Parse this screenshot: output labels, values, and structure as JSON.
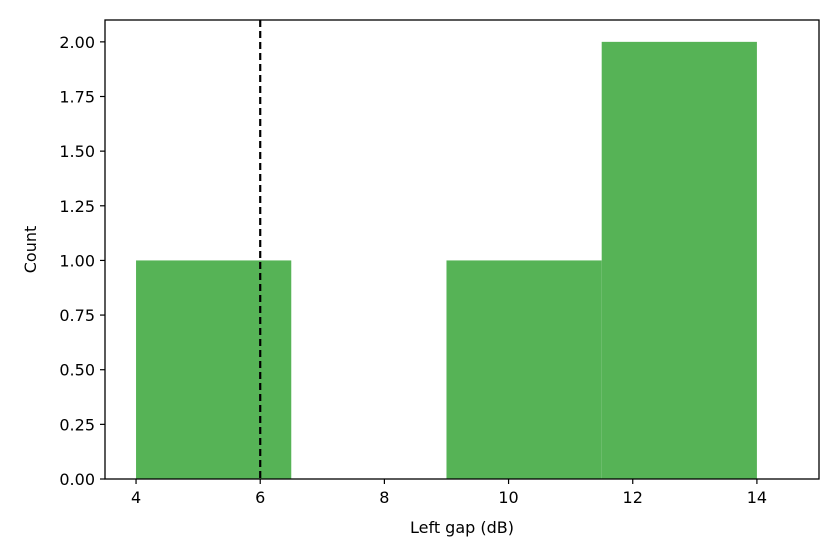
{
  "chart_data": {
    "type": "histogram",
    "xlabel": "Left gap (dB)",
    "ylabel": "Count",
    "xlim": [
      3.5,
      15.0
    ],
    "ylim": [
      0.0,
      2.1
    ],
    "xticks": [
      4,
      6,
      8,
      10,
      12,
      14
    ],
    "yticks": [
      "0.00",
      "0.25",
      "0.50",
      "0.75",
      "1.00",
      "1.25",
      "1.50",
      "1.75",
      "2.00"
    ],
    "bins": [
      {
        "x0": 4.0,
        "x1": 6.5,
        "count": 1
      },
      {
        "x0": 6.5,
        "x1": 9.0,
        "count": 0
      },
      {
        "x0": 9.0,
        "x1": 11.5,
        "count": 1
      },
      {
        "x0": 11.5,
        "x1": 14.0,
        "count": 2
      }
    ],
    "reference_line": {
      "x": 6,
      "style": "dashed",
      "color": "#000000"
    },
    "bar_color": "#56b356",
    "grid": false,
    "legend": "none"
  }
}
